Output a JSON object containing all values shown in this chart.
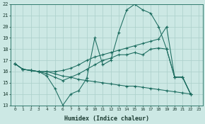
{
  "xlabel": "Humidex (Indice chaleur)",
  "ylabel": "",
  "xlim": [
    -0.5,
    23.5
  ],
  "ylim": [
    13,
    22
  ],
  "xtick_labels": [
    "0",
    "1",
    "2",
    "3",
    "4",
    "5",
    "6",
    "7",
    "8",
    "9",
    "10",
    "11",
    "12",
    "13",
    "14",
    "15",
    "16",
    "17",
    "18",
    "19",
    "20",
    "21",
    "22",
    "23"
  ],
  "ytick_vals": [
    13,
    14,
    15,
    16,
    17,
    18,
    19,
    20,
    21,
    22
  ],
  "bg_color": "#cce8e4",
  "grid_color": "#aacfca",
  "line_color": "#1a6b5e",
  "series": [
    [
      16.7,
      16.2,
      16.1,
      16.0,
      15.6,
      14.5,
      13.0,
      14.0,
      14.3,
      15.4,
      19.0,
      16.6,
      17.0,
      19.5,
      21.5,
      22.0,
      21.5,
      21.2,
      20.0,
      18.0,
      15.5,
      15.5,
      14.0
    ],
    [
      16.7,
      16.2,
      16.1,
      16.0,
      16.0,
      16.0,
      16.1,
      16.3,
      16.6,
      17.0,
      17.3,
      17.5,
      17.7,
      17.9,
      18.1,
      18.3,
      18.5,
      18.7,
      18.9,
      20.0,
      15.5,
      15.5,
      14.0
    ],
    [
      16.7,
      16.2,
      16.1,
      16.0,
      15.8,
      15.5,
      15.2,
      15.5,
      15.8,
      16.2,
      16.6,
      17.0,
      17.2,
      17.5,
      17.5,
      17.7,
      17.5,
      18.0,
      18.1,
      18.0,
      15.5,
      15.5,
      14.0
    ],
    [
      16.7,
      16.2,
      16.1,
      16.0,
      16.0,
      15.8,
      15.6,
      15.5,
      15.3,
      15.2,
      15.1,
      15.0,
      14.9,
      14.8,
      14.7,
      14.7,
      14.6,
      14.5,
      14.4,
      14.3,
      14.2,
      14.1,
      14.0
    ]
  ]
}
